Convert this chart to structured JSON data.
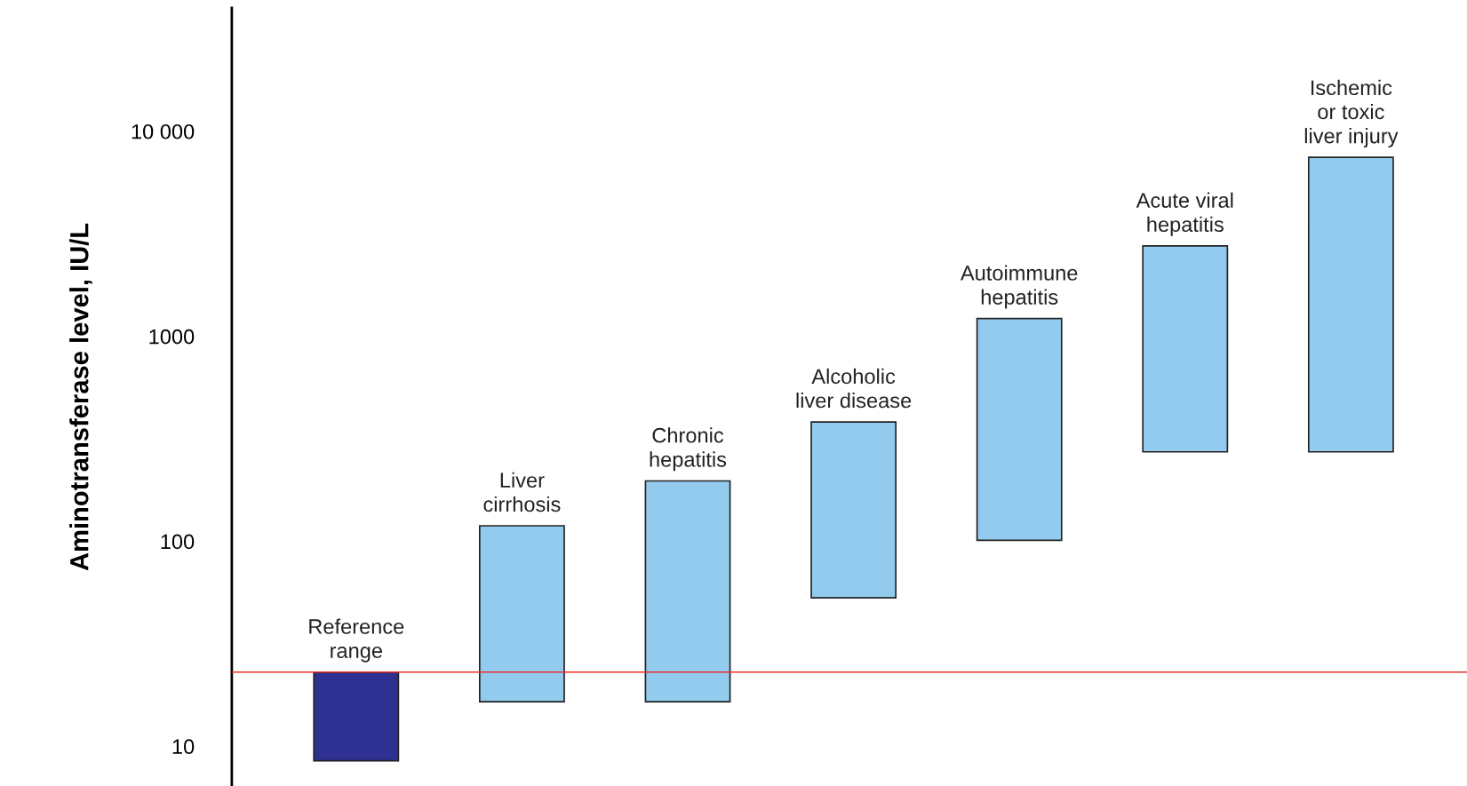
{
  "chart_data": {
    "type": "bar",
    "ylabel": "Aminotransferase level, IU/L",
    "categories": [
      "Reference\nrange",
      "Liver\ncirrhosis",
      "Chronic\nhepatitis",
      "Alcoholic\nliver disease",
      "Autoimmune\nhepatitis",
      "Acute viral\nhepatitis",
      "Ischemic\nor toxic\nliver injury"
    ],
    "base": [
      8.5,
      16.5,
      16.5,
      53,
      101,
      273,
      273
    ],
    "values": [
      14.5,
      102.5,
      180.5,
      329,
      1119,
      2487,
      7187
    ],
    "colors": [
      "#2e3192",
      "#93cbee",
      "#93cbee",
      "#93cbee",
      "#93cbee",
      "#93cbee",
      "#93cbee"
    ],
    "log": "y",
    "ylim": [
      6.4,
      40000
    ],
    "yticks": [
      10,
      100,
      1000,
      {
        "value": 10000,
        "label": "10 000"
      }
    ],
    "ref_lines": [
      {
        "axis": "y",
        "value": 23,
        "color": "#e8302e"
      }
    ],
    "tick_labels": "y",
    "grid": false,
    "legend": false
  }
}
